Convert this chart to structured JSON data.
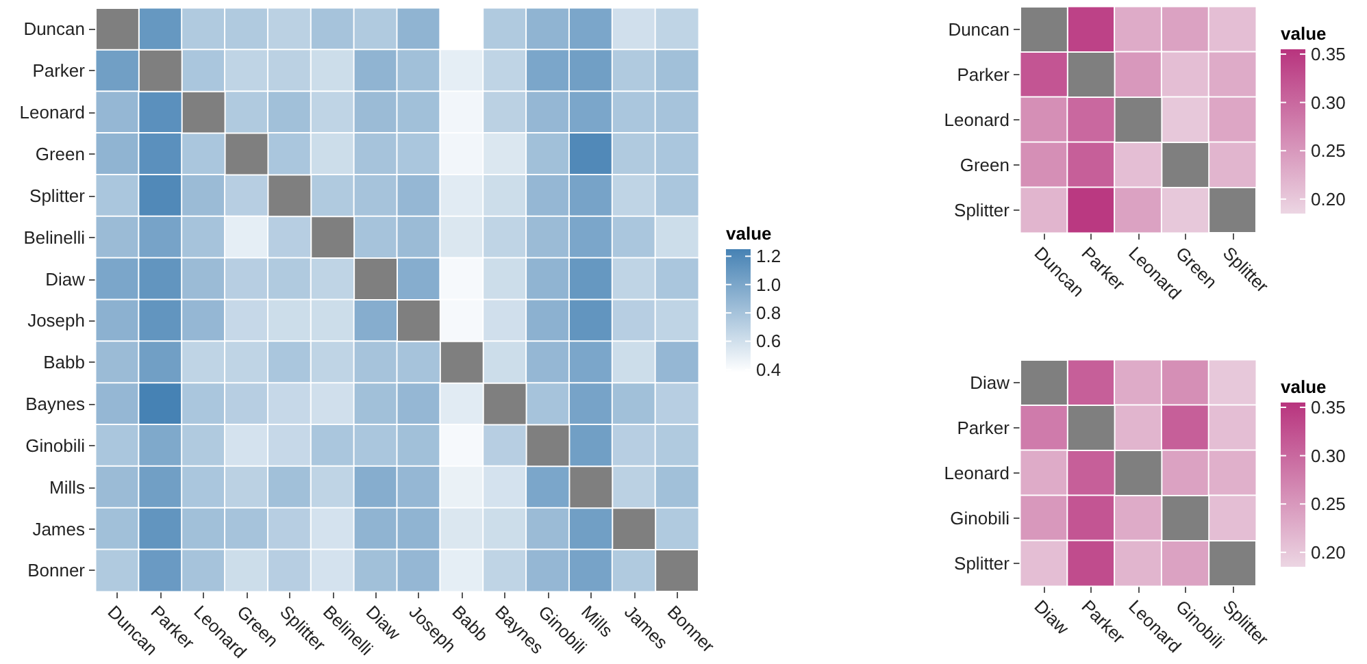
{
  "chart_data": [
    {
      "type": "heatmap",
      "legend_title": "value",
      "colors": [
        "#ffffff",
        "#4682b4"
      ],
      "clim": [
        0.38,
        1.25
      ],
      "cticks": [
        0.4,
        0.6,
        0.8,
        {
          "value": 1,
          "label": "1.0"
        },
        1.2
      ],
      "categories": [
        "Duncan",
        "Parker",
        "Leonard",
        "Green",
        "Splitter",
        "Belinelli",
        "Diaw",
        "Joseph",
        "Babb",
        "Baynes",
        "Ginobili",
        "Mills",
        "James",
        "Bonner"
      ],
      "y_categories": [
        "Duncan",
        "Parker",
        "Leonard",
        "Green",
        "Splitter",
        "Belinelli",
        "Diaw",
        "Joseph",
        "Babb",
        "Baynes",
        "Ginobili",
        "Mills",
        "James",
        "Bonner"
      ],
      "cells": [
        [
          null,
          1.1,
          0.75,
          0.75,
          0.7,
          0.8,
          0.75,
          0.9,
          0.38,
          0.75,
          0.9,
          1.0,
          0.6,
          0.68
        ],
        [
          1.05,
          null,
          0.78,
          0.68,
          0.7,
          0.62,
          0.9,
          0.82,
          0.5,
          0.68,
          1.0,
          1.05,
          0.75,
          0.82
        ],
        [
          0.88,
          1.15,
          null,
          0.75,
          0.82,
          0.68,
          0.85,
          0.82,
          0.44,
          0.7,
          0.88,
          1.0,
          0.78,
          0.8
        ],
        [
          0.9,
          1.15,
          0.78,
          null,
          0.78,
          0.62,
          0.8,
          0.78,
          0.44,
          0.55,
          0.82,
          1.2,
          0.75,
          0.78
        ],
        [
          0.78,
          1.2,
          0.85,
          0.72,
          null,
          0.75,
          0.8,
          0.88,
          0.52,
          0.62,
          0.88,
          1.02,
          0.68,
          0.78
        ],
        [
          0.85,
          1.02,
          0.8,
          0.5,
          0.72,
          null,
          0.8,
          0.85,
          0.55,
          0.68,
          0.85,
          1.0,
          0.78,
          0.62
        ],
        [
          1.0,
          1.12,
          0.85,
          0.72,
          0.75,
          0.68,
          null,
          0.95,
          0.42,
          0.62,
          0.9,
          1.1,
          0.68,
          0.78
        ],
        [
          0.92,
          1.12,
          0.88,
          0.65,
          0.62,
          0.62,
          0.95,
          null,
          0.42,
          0.6,
          0.92,
          1.12,
          0.72,
          0.68
        ],
        [
          0.85,
          1.05,
          0.68,
          0.68,
          0.78,
          0.68,
          0.8,
          0.8,
          null,
          0.62,
          0.88,
          1.0,
          0.62,
          0.88
        ],
        [
          0.88,
          1.25,
          0.78,
          0.72,
          0.65,
          0.6,
          0.82,
          0.88,
          0.52,
          null,
          0.8,
          1.02,
          0.82,
          0.72
        ],
        [
          0.78,
          0.98,
          0.75,
          0.58,
          0.65,
          0.78,
          0.78,
          0.82,
          0.42,
          0.72,
          null,
          1.05,
          0.72,
          0.75
        ],
        [
          0.85,
          1.05,
          0.78,
          0.7,
          0.82,
          0.68,
          0.95,
          0.88,
          0.48,
          0.58,
          1.0,
          null,
          0.7,
          0.82
        ],
        [
          0.82,
          1.12,
          0.82,
          0.8,
          0.72,
          0.58,
          0.9,
          0.9,
          0.55,
          0.62,
          0.85,
          1.05,
          null,
          0.75
        ],
        [
          0.75,
          1.08,
          0.8,
          0.62,
          0.72,
          0.58,
          0.82,
          0.88,
          0.5,
          0.68,
          0.88,
          1.02,
          0.75,
          null
        ]
      ]
    },
    {
      "type": "heatmap",
      "legend_title": "value",
      "colors": [
        "#ecd6e3",
        "#b8347e"
      ],
      "clim": [
        0.185,
        0.355
      ],
      "cticks": [
        {
          "value": 0.2,
          "label": "0.20"
        },
        0.25,
        {
          "value": 0.3,
          "label": "0.30"
        },
        0.35
      ],
      "categories": [
        "Duncan",
        "Parker",
        "Leonard",
        "Green",
        "Splitter"
      ],
      "y_categories": [
        "Duncan",
        "Parker",
        "Leonard",
        "Green",
        "Splitter"
      ],
      "cells": [
        [
          null,
          0.34,
          0.23,
          0.24,
          0.21
        ],
        [
          0.32,
          null,
          0.25,
          0.21,
          0.23
        ],
        [
          0.26,
          0.3,
          null,
          0.2,
          0.235
        ],
        [
          0.26,
          0.31,
          0.21,
          null,
          0.22
        ],
        [
          0.22,
          0.35,
          0.24,
          0.2,
          null
        ]
      ]
    },
    {
      "type": "heatmap",
      "legend_title": "value",
      "colors": [
        "#ecd6e3",
        "#b8347e"
      ],
      "clim": [
        0.185,
        0.355
      ],
      "cticks": [
        {
          "value": 0.2,
          "label": "0.20"
        },
        0.25,
        {
          "value": 0.3,
          "label": "0.30"
        },
        0.35
      ],
      "categories": [
        "Diaw",
        "Parker",
        "Leonard",
        "Ginobili",
        "Splitter"
      ],
      "y_categories": [
        "Diaw",
        "Parker",
        "Leonard",
        "Ginobili",
        "Splitter"
      ],
      "cells": [
        [
          null,
          0.31,
          0.23,
          0.26,
          0.2
        ],
        [
          0.28,
          null,
          0.22,
          0.31,
          0.21
        ],
        [
          0.23,
          0.31,
          null,
          0.24,
          0.225
        ],
        [
          0.25,
          0.32,
          0.23,
          null,
          0.21
        ],
        [
          0.21,
          0.33,
          0.22,
          0.24,
          null
        ]
      ]
    }
  ]
}
